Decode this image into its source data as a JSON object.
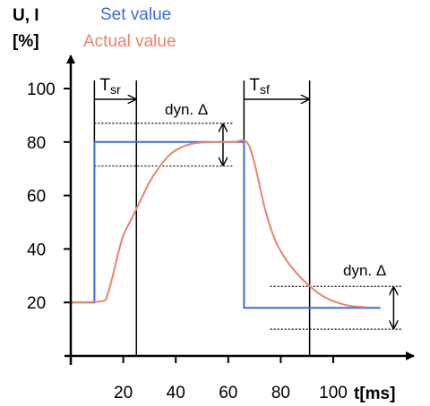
{
  "chart_data": {
    "type": "line",
    "y_axis_title_line1": "U, I",
    "y_axis_title_line2": "[%]",
    "x_axis_title": "t[ms]",
    "xlim": [
      0,
      115
    ],
    "ylim": [
      0,
      105
    ],
    "x_ticks": [
      20,
      40,
      60,
      80,
      100
    ],
    "y_ticks": [
      20,
      40,
      60,
      80,
      100
    ],
    "series": [
      {
        "name": "Set value",
        "color": "#3a6fd8",
        "points": [
          [
            0,
            20
          ],
          [
            9,
            20
          ],
          [
            9,
            80
          ],
          [
            66,
            80
          ],
          [
            66,
            18
          ],
          [
            118,
            18
          ]
        ]
      },
      {
        "name": "Actual value",
        "color": "#e8836f",
        "points": [
          [
            0,
            20
          ],
          [
            12,
            20.5
          ],
          [
            14,
            23
          ],
          [
            16,
            30
          ],
          [
            18,
            38
          ],
          [
            20,
            45
          ],
          [
            23,
            51
          ],
          [
            26,
            57
          ],
          [
            30,
            65
          ],
          [
            34,
            71
          ],
          [
            38,
            75.5
          ],
          [
            42,
            78
          ],
          [
            46,
            79.3
          ],
          [
            50,
            79.8
          ],
          [
            56,
            80
          ],
          [
            62,
            80
          ],
          [
            67,
            80
          ],
          [
            70,
            72
          ],
          [
            74,
            55
          ],
          [
            78,
            43
          ],
          [
            82,
            36
          ],
          [
            86,
            31
          ],
          [
            90,
            27
          ],
          [
            95,
            23
          ],
          [
            100,
            20.5
          ],
          [
            106,
            18.8
          ],
          [
            112,
            18.3
          ]
        ]
      }
    ],
    "annotations": {
      "tsr_label_main": "T",
      "tsr_label_sub": "sr",
      "tsf_label_main": "T",
      "tsf_label_sub": "sf",
      "dyn_label_upper": "dyn. Δ",
      "dyn_label_lower": "dyn. Δ"
    },
    "annotation_values": {
      "tsr_start": 9,
      "tsr_end": 25,
      "tsr_arrow_y": 96,
      "tsf_start": 66,
      "tsf_end": 91,
      "tsf_arrow_y": 96,
      "upper_band": [
        71,
        87
      ],
      "upper_band_x": [
        9,
        62
      ],
      "upper_arrow_x": 58,
      "lower_band": [
        10,
        26
      ],
      "lower_band_x": [
        76,
        126
      ],
      "lower_arrow_x": 123
    }
  }
}
